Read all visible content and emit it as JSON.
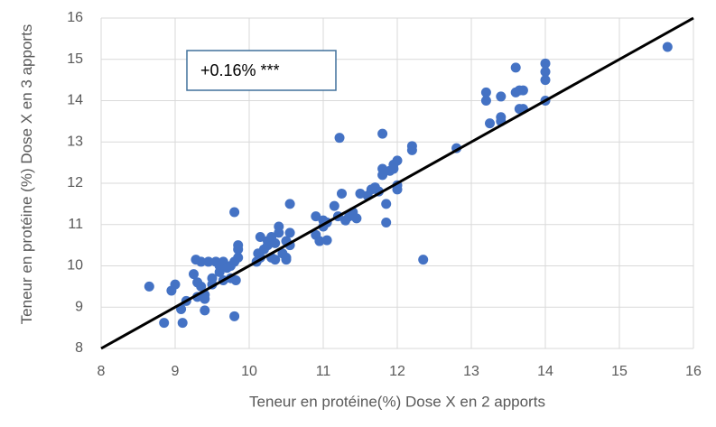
{
  "chart_data": {
    "type": "scatter",
    "xlabel": "Teneur en protéine(%) Dose X en 2 apports",
    "ylabel": "Teneur en protéine (%) Dose X en 3 apports",
    "annotation": "+0.16% ***",
    "color": "#4472c4",
    "grid": true,
    "xlim": [
      8,
      16
    ],
    "ylim": [
      8,
      16
    ],
    "xticks": [
      8,
      9,
      10,
      11,
      12,
      13,
      14,
      15,
      16
    ],
    "yticks": [
      8,
      9,
      10,
      11,
      12,
      13,
      14,
      15,
      16
    ],
    "reference_line": {
      "x": [
        8,
        16
      ],
      "y": [
        8,
        16
      ],
      "color": "#000000"
    },
    "x": [
      8.65,
      8.85,
      8.95,
      9.0,
      9.08,
      9.1,
      9.15,
      9.25,
      9.28,
      9.3,
      9.3,
      9.35,
      9.35,
      9.4,
      9.4,
      9.4,
      9.45,
      9.5,
      9.5,
      9.55,
      9.6,
      9.6,
      9.65,
      9.65,
      9.7,
      9.75,
      9.8,
      9.8,
      9.8,
      9.82,
      9.85,
      9.85,
      9.85,
      9.75,
      10.1,
      10.12,
      10.15,
      10.15,
      10.2,
      10.25,
      10.25,
      10.3,
      10.3,
      10.35,
      10.35,
      10.4,
      10.4,
      10.45,
      10.5,
      10.5,
      10.5,
      10.55,
      10.55,
      10.55,
      10.9,
      10.9,
      10.95,
      11.0,
      11.0,
      11.05,
      11.05,
      11.15,
      11.2,
      11.22,
      11.25,
      11.3,
      11.35,
      11.4,
      11.45,
      11.5,
      11.6,
      11.65,
      11.7,
      11.75,
      11.8,
      11.8,
      11.8,
      11.85,
      11.85,
      11.9,
      11.95,
      11.95,
      12.0,
      12.0,
      12.0,
      12.2,
      12.2,
      12.35,
      12.8,
      13.2,
      13.2,
      13.25,
      13.4,
      13.4,
      13.4,
      13.6,
      13.6,
      13.65,
      13.65,
      13.7,
      13.7,
      14.0,
      14.0,
      14.0,
      14.0,
      15.65
    ],
    "values": [
      9.5,
      8.62,
      9.4,
      9.55,
      8.95,
      8.62,
      9.15,
      9.8,
      10.15,
      9.6,
      9.25,
      9.5,
      10.1,
      9.3,
      9.2,
      8.92,
      10.1,
      9.7,
      9.55,
      10.1,
      9.85,
      10.0,
      9.65,
      10.1,
      9.95,
      10.0,
      8.78,
      11.3,
      10.1,
      9.65,
      10.2,
      10.5,
      10.4,
      9.7,
      10.1,
      10.3,
      10.2,
      10.7,
      10.4,
      10.5,
      10.6,
      10.2,
      10.7,
      10.15,
      10.55,
      10.95,
      10.8,
      10.3,
      10.2,
      10.6,
      10.15,
      10.5,
      10.8,
      11.5,
      10.75,
      11.2,
      10.6,
      11.1,
      10.95,
      10.62,
      11.05,
      11.45,
      11.2,
      13.1,
      11.75,
      11.1,
      11.2,
      11.3,
      11.15,
      11.75,
      11.7,
      11.85,
      11.9,
      11.8,
      13.2,
      12.2,
      12.35,
      11.5,
      11.05,
      12.3,
      12.45,
      12.35,
      12.55,
      11.95,
      11.85,
      12.9,
      12.8,
      10.15,
      12.85,
      14.2,
      14.0,
      13.45,
      13.6,
      13.5,
      14.1,
      14.8,
      14.2,
      13.8,
      14.25,
      14.25,
      13.8,
      14.9,
      14.7,
      14.5,
      14.0,
      15.3
    ]
  }
}
